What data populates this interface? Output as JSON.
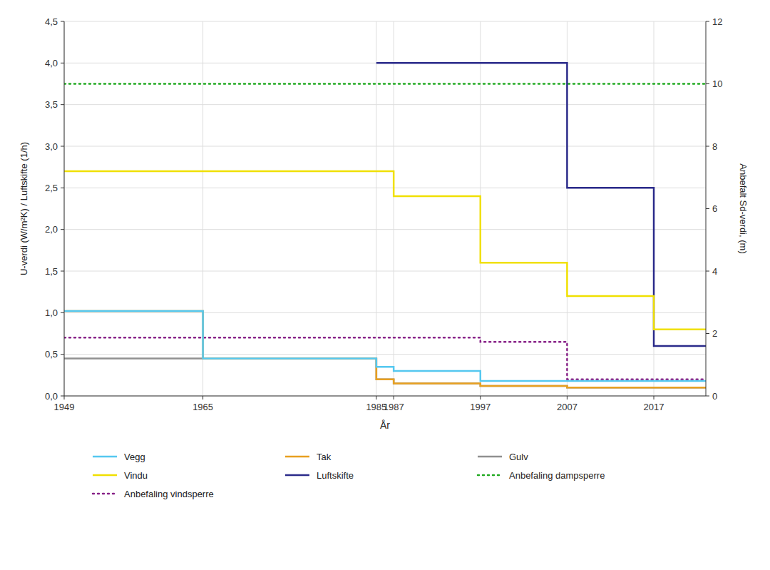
{
  "chart_data": {
    "type": "line",
    "xlabel": "År",
    "ylabel": "U-verdi (W/m²K) / Luftskifte (1/h)",
    "y2label": "Anbefalt Sd-verdi, (m)",
    "xlim": [
      1949,
      2023
    ],
    "xticks": [
      1949,
      1965,
      1985,
      1987,
      1997,
      2007,
      2017
    ],
    "ylim": [
      0.0,
      4.5
    ],
    "yticks": [
      {
        "value": 0.0,
        "label": "0,0"
      },
      {
        "value": 0.5,
        "label": "0,5"
      },
      {
        "value": 1.0,
        "label": "1,0"
      },
      {
        "value": 1.5,
        "label": "1,5"
      },
      {
        "value": 2.0,
        "label": "2,0"
      },
      {
        "value": 2.5,
        "label": "2,5"
      },
      {
        "value": 3.0,
        "label": "3,0"
      },
      {
        "value": 3.5,
        "label": "3,5"
      },
      {
        "value": 4.0,
        "label": "4,0"
      },
      {
        "value": 4.5,
        "label": "4,5"
      }
    ],
    "y2lim": [
      0,
      12
    ],
    "y2ticks": [
      0,
      2,
      4,
      6,
      8,
      10,
      12
    ],
    "grid": true,
    "legend": "bottom",
    "series": [
      {
        "name": "Vegg",
        "color": "#55C8F0",
        "line_style": "solid",
        "x": [
          1949,
          1965,
          1965,
          1985,
          1985,
          1987,
          1987,
          1997,
          1997,
          2007,
          2007,
          2023
        ],
        "values": [
          1.02,
          1.02,
          0.45,
          0.45,
          0.35,
          0.35,
          0.3,
          0.3,
          0.18,
          0.18,
          0.18,
          0.18
        ]
      },
      {
        "name": "Tak",
        "color": "#E8A020",
        "line_style": "solid",
        "x": [
          1949,
          1965,
          1965,
          1985,
          1985,
          1987,
          1987,
          1997,
          1997,
          2007,
          2007,
          2023
        ],
        "values": [
          1.02,
          1.02,
          0.45,
          0.45,
          0.2,
          0.2,
          0.15,
          0.15,
          0.12,
          0.12,
          0.1,
          0.1
        ]
      },
      {
        "name": "Gulv",
        "color": "#909090",
        "line_style": "solid",
        "x": [
          1949,
          1985,
          1985,
          1987,
          1987,
          1997,
          1997,
          2007,
          2007,
          2023
        ],
        "values": [
          0.45,
          0.45,
          0.2,
          0.2,
          0.15,
          0.15,
          0.12,
          0.12,
          0.1,
          0.1
        ]
      },
      {
        "name": "Vindu",
        "color": "#F0E000",
        "line_style": "solid",
        "x": [
          1949,
          1985,
          1985,
          1987,
          1987,
          1997,
          1997,
          2007,
          2007,
          2017,
          2017,
          2023
        ],
        "values": [
          2.7,
          2.7,
          2.7,
          2.7,
          2.4,
          2.4,
          1.6,
          1.6,
          1.2,
          1.2,
          0.8,
          0.8
        ]
      },
      {
        "name": "Luftskifte",
        "color": "#2B2B8A",
        "line_style": "solid",
        "x": [
          1985,
          2007,
          2007,
          2017,
          2017,
          2023
        ],
        "values": [
          4.0,
          4.0,
          2.5,
          2.5,
          0.6,
          0.6
        ]
      },
      {
        "name": "Anbefaling dampsperre",
        "color": "#22AA22",
        "line_style": "dotted",
        "type": "hline",
        "values": [
          3.75
        ]
      },
      {
        "name": "Anbefaling vindsperre",
        "color": "#882288",
        "line_style": "dotted",
        "x": [
          1949,
          1997,
          1997,
          2007,
          2007,
          2007,
          2023
        ],
        "values": [
          0.7,
          0.7,
          0.65,
          0.65,
          0.55,
          0.2,
          0.2
        ]
      }
    ]
  }
}
